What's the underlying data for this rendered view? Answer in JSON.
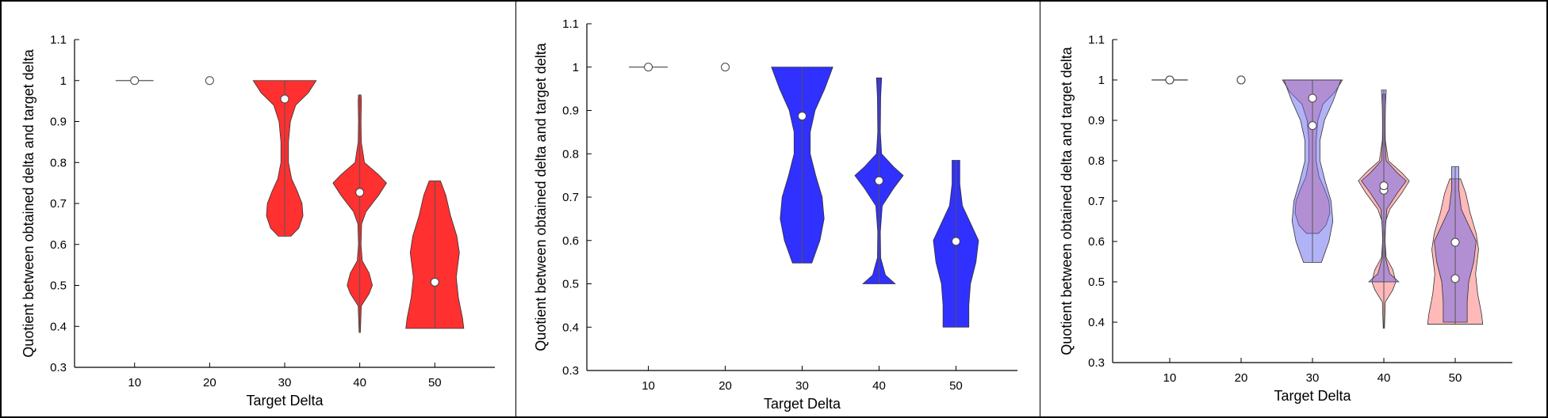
{
  "chart_data": [
    {
      "type": "violin",
      "xlabel": "Target Delta",
      "ylabel": "Quotient between obtained delta and target delta",
      "categories": [
        "10",
        "20",
        "30",
        "40",
        "50"
      ],
      "ylim": [
        0.3,
        1.1
      ],
      "yticks": [
        "0.3",
        "0.4",
        "0.5",
        "0.6",
        "0.7",
        "0.8",
        "0.9",
        "1",
        "1.1"
      ],
      "series": [
        {
          "color": "#ff1a1a",
          "fill_opacity": 0.9,
          "violins": [
            {
              "category": "10",
              "median": 1.0,
              "min": 1.0,
              "max": 1.0,
              "shape": [
                [
                  1.0,
                  0.6
                ]
              ]
            },
            {
              "category": "20",
              "median": 1.0,
              "min": 1.0,
              "max": 1.0,
              "shape": []
            },
            {
              "category": "30",
              "median": 0.955,
              "min": 0.62,
              "max": 1.0,
              "shape": [
                [
                  0.62,
                  0.2
                ],
                [
                  0.64,
                  0.45
                ],
                [
                  0.67,
                  0.58
                ],
                [
                  0.7,
                  0.55
                ],
                [
                  0.73,
                  0.4
                ],
                [
                  0.76,
                  0.22
                ],
                [
                  0.8,
                  0.12
                ],
                [
                  0.85,
                  0.12
                ],
                [
                  0.9,
                  0.18
                ],
                [
                  0.94,
                  0.35
                ],
                [
                  0.97,
                  0.75
                ],
                [
                  1.0,
                  1.0
                ]
              ]
            },
            {
              "category": "40",
              "median": 0.727,
              "min": 0.385,
              "max": 0.965,
              "shape": [
                [
                  0.385,
                  0.02
                ],
                [
                  0.45,
                  0.05
                ],
                [
                  0.48,
                  0.3
                ],
                [
                  0.5,
                  0.4
                ],
                [
                  0.53,
                  0.3
                ],
                [
                  0.56,
                  0.08
                ],
                [
                  0.6,
                  0.04
                ],
                [
                  0.65,
                  0.06
                ],
                [
                  0.68,
                  0.2
                ],
                [
                  0.72,
                  0.6
                ],
                [
                  0.75,
                  0.85
                ],
                [
                  0.77,
                  0.6
                ],
                [
                  0.8,
                  0.15
                ],
                [
                  0.85,
                  0.05
                ],
                [
                  0.9,
                  0.04
                ],
                [
                  0.95,
                  0.05
                ],
                [
                  0.965,
                  0.04
                ]
              ]
            },
            {
              "category": "50",
              "median": 0.508,
              "min": 0.395,
              "max": 0.755,
              "shape": [
                [
                  0.395,
                  0.92
                ],
                [
                  0.42,
                  0.88
                ],
                [
                  0.47,
                  0.75
                ],
                [
                  0.52,
                  0.68
                ],
                [
                  0.58,
                  0.78
                ],
                [
                  0.62,
                  0.7
                ],
                [
                  0.67,
                  0.5
                ],
                [
                  0.72,
                  0.35
                ],
                [
                  0.755,
                  0.18
                ]
              ]
            }
          ]
        },
        {
          "color": "#1a1aff",
          "fill_opacity": 0.9,
          "violins": [
            {
              "category": "10",
              "median": 1.0,
              "min": 1.0,
              "max": 1.0,
              "shape": [
                [
                  1.0,
                  0.6
                ]
              ]
            },
            {
              "category": "20",
              "median": 1.0,
              "min": 1.0,
              "max": 1.0,
              "shape": []
            },
            {
              "category": "30",
              "median": 0.887,
              "min": 0.548,
              "max": 1.0,
              "shape": [
                [
                  0.548,
                  0.3
                ],
                [
                  0.6,
                  0.55
                ],
                [
                  0.65,
                  0.68
                ],
                [
                  0.7,
                  0.62
                ],
                [
                  0.75,
                  0.42
                ],
                [
                  0.8,
                  0.25
                ],
                [
                  0.85,
                  0.25
                ],
                [
                  0.9,
                  0.4
                ],
                [
                  0.95,
                  0.7
                ],
                [
                  1.0,
                  0.95
                ]
              ]
            },
            {
              "category": "40",
              "median": 0.738,
              "min": 0.5,
              "max": 0.975,
              "shape": [
                [
                  0.5,
                  0.5
                ],
                [
                  0.52,
                  0.2
                ],
                [
                  0.56,
                  0.05
                ],
                [
                  0.62,
                  0.04
                ],
                [
                  0.68,
                  0.1
                ],
                [
                  0.72,
                  0.45
                ],
                [
                  0.75,
                  0.75
                ],
                [
                  0.77,
                  0.45
                ],
                [
                  0.8,
                  0.08
                ],
                [
                  0.85,
                  0.04
                ],
                [
                  0.93,
                  0.05
                ],
                [
                  0.975,
                  0.08
                ]
              ]
            },
            {
              "category": "50",
              "median": 0.598,
              "min": 0.4,
              "max": 0.785,
              "shape": [
                [
                  0.4,
                  0.4
                ],
                [
                  0.45,
                  0.4
                ],
                [
                  0.5,
                  0.45
                ],
                [
                  0.55,
                  0.62
                ],
                [
                  0.6,
                  0.7
                ],
                [
                  0.64,
                  0.45
                ],
                [
                  0.68,
                  0.2
                ],
                [
                  0.73,
                  0.12
                ],
                [
                  0.785,
                  0.12
                ]
              ]
            }
          ]
        },
        {
          "overlay": true,
          "layers": [
            {
              "color": "#ff8080",
              "fill_opacity": 0.55,
              "source_series": 0
            },
            {
              "color": "#6666ee",
              "fill_opacity": 0.5,
              "source_series": 1
            }
          ]
        }
      ]
    }
  ]
}
